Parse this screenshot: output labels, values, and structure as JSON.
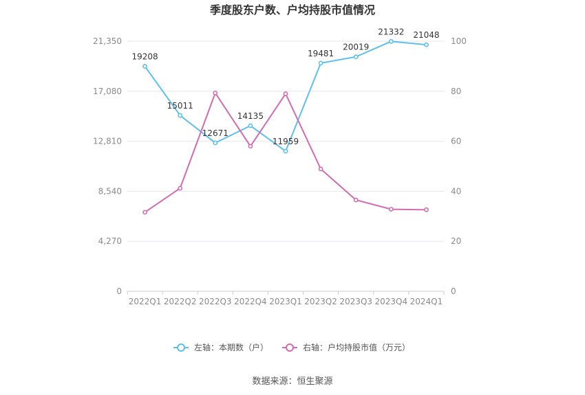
{
  "chart_data": {
    "type": "line",
    "title": "季度股东户数、户均持股市值情况",
    "categories": [
      "2022Q1",
      "2022Q2",
      "2022Q3",
      "2022Q4",
      "2023Q1",
      "2023Q2",
      "2023Q3",
      "2023Q4",
      "2024Q1"
    ],
    "y_left": {
      "min": 0,
      "max": 21350,
      "ticks": [
        0,
        4270,
        8540,
        12810,
        17080,
        21350
      ],
      "tick_labels": [
        "0",
        "4,270",
        "8,540",
        "12,810",
        "17,080",
        "21,350"
      ]
    },
    "y_right": {
      "min": 0,
      "max": 100,
      "ticks": [
        0,
        20,
        40,
        60,
        80,
        100
      ],
      "tick_labels": [
        "0",
        "20",
        "40",
        "60",
        "80",
        "100"
      ]
    },
    "grid": true,
    "legend_position": "bottom",
    "series": [
      {
        "name": "左轴：本期数（户）",
        "axis": "left",
        "color": "#5bc0f0",
        "values": [
          19208,
          15011,
          12671,
          14135,
          11959,
          19481,
          20019,
          21332,
          21048
        ],
        "labels": [
          "19208",
          "15011",
          "12671",
          "14135",
          "11959",
          "19481",
          "20019",
          "21332",
          "21048"
        ]
      },
      {
        "name": "右轴：户均持股市值（万元）",
        "axis": "right",
        "color": "#d46bb0",
        "values": [
          31.6,
          41.2,
          79.3,
          58.0,
          79.0,
          48.9,
          36.5,
          32.8,
          32.6
        ]
      }
    ],
    "source": "数据来源：恒生聚源"
  }
}
